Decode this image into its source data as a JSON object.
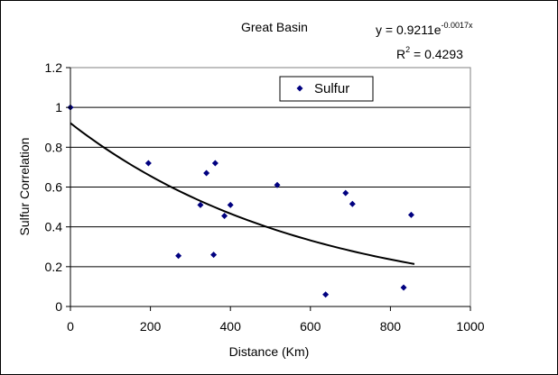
{
  "chart_data": {
    "type": "scatter",
    "title": "Great Basin",
    "xlabel": "Distance (Km)",
    "ylabel": "Sulfur Correlation",
    "xlim": [
      0,
      1000
    ],
    "ylim": [
      0,
      1.2
    ],
    "x_ticks": [
      "0",
      "200",
      "400",
      "600",
      "800",
      "1000"
    ],
    "y_ticks": [
      "0",
      "0.2",
      "0.4",
      "0.6",
      "0.8",
      "1",
      "1.2"
    ],
    "grid": "horizontal",
    "legend_position": "top-center",
    "series": [
      {
        "name": "Sulfur",
        "marker": "diamond",
        "color": "#000080",
        "points": [
          {
            "x": 0,
            "y": 1.0
          },
          {
            "x": 195,
            "y": 0.72
          },
          {
            "x": 270,
            "y": 0.255
          },
          {
            "x": 325,
            "y": 0.51
          },
          {
            "x": 340,
            "y": 0.67
          },
          {
            "x": 358,
            "y": 0.26
          },
          {
            "x": 362,
            "y": 0.72
          },
          {
            "x": 385,
            "y": 0.455
          },
          {
            "x": 400,
            "y": 0.51
          },
          {
            "x": 517,
            "y": 0.61
          },
          {
            "x": 638,
            "y": 0.06
          },
          {
            "x": 688,
            "y": 0.57
          },
          {
            "x": 705,
            "y": 0.515
          },
          {
            "x": 833,
            "y": 0.095
          },
          {
            "x": 852,
            "y": 0.46
          }
        ]
      }
    ],
    "trendline": {
      "type": "exponential",
      "a": 0.9211,
      "b": -0.0017,
      "x_range": [
        0,
        860
      ],
      "color": "#000000",
      "equation_base": "y = 0.9211e",
      "equation_exponent": "-0.0017x",
      "r2_prefix": "R",
      "r2_sup": "2",
      "r2_suffix": " = 0.4293"
    }
  }
}
